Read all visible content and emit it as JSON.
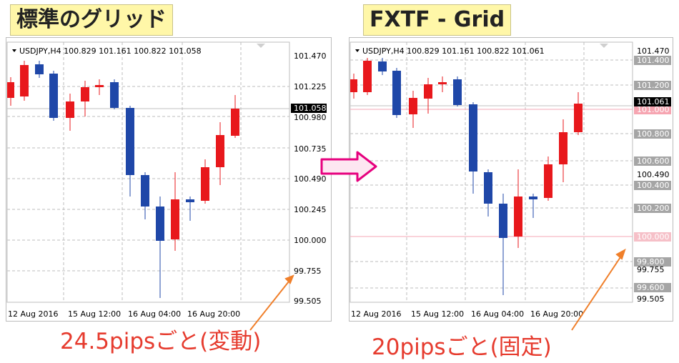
{
  "left": {
    "title": "標準のグリッド",
    "header": "USDJPY,H4  100.829 101.161 100.822 101.058",
    "caption": "24.5pipsごと(変動)",
    "price_labels": [
      "101.470",
      "101.225",
      "100.980",
      "100.735",
      "100.490",
      "100.245",
      "100.000",
      "99.755",
      "99.505"
    ],
    "current_price": "101.058",
    "time_labels": [
      "12 Aug 2016",
      "15 Aug 12:00",
      "16 Aug 04:00",
      "16 Aug 20:00"
    ]
  },
  "right": {
    "title": "FXTF - Grid",
    "header": "USDJPY,H4  100.829 101.161 100.822 101.061",
    "caption": "20pipsごと(固定)",
    "price_labels": [
      "101.470",
      "101.400",
      "101.200",
      "101.061",
      "101.000",
      "100.800",
      "100.600",
      "100.490",
      "100.400",
      "100.200",
      "100.000",
      "99.800",
      "99.755",
      "99.600",
      "99.505"
    ],
    "current_price": "101.061",
    "time_labels": [
      "12 Aug 2016",
      "15 Aug 12:00",
      "16 Aug 04:00",
      "16 Aug 20:00"
    ]
  },
  "colors": {
    "bull": "#e8181c",
    "bear": "#1f47a8",
    "caption": "#e63b2e",
    "arrow": "#e6007e",
    "pointer": "#f07f2a"
  }
}
